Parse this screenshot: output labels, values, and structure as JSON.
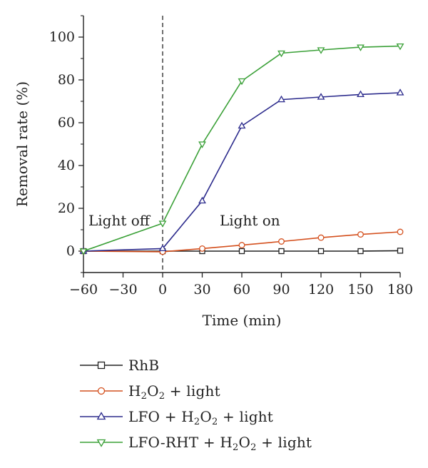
{
  "chart_data": {
    "type": "line",
    "xlabel": "Time (min)",
    "ylabel": "Removal rate (%)",
    "xlim": [
      -60,
      180
    ],
    "ylim": [
      -10,
      110
    ],
    "x_ticks": [
      -60,
      -30,
      0,
      30,
      60,
      90,
      120,
      150,
      180
    ],
    "y_ticks": [
      0,
      20,
      40,
      60,
      80,
      100
    ],
    "x_tick_labels": [
      "−60",
      "−30",
      "0",
      "30",
      "60",
      "90",
      "120",
      "150",
      "180"
    ],
    "y_tick_labels": [
      "0",
      "20",
      "40",
      "60",
      "80",
      "100"
    ],
    "grid": false,
    "legend_position": "bottom",
    "annotations": {
      "light_off": "Light off",
      "light_on": "Light on",
      "divider_x": 0
    },
    "x": [
      -60,
      0,
      30,
      60,
      90,
      120,
      150,
      180
    ],
    "series": [
      {
        "name": "RhB",
        "color": "#222222",
        "marker": "square",
        "values": [
          0,
          0,
          0,
          0,
          0,
          0,
          0,
          0.2
        ]
      },
      {
        "name": "H₂O₂ + light",
        "color": "#d4501e",
        "marker": "circle",
        "values": [
          0,
          -0.3,
          1.2,
          2.8,
          4.5,
          6.3,
          7.8,
          9.0
        ]
      },
      {
        "name": "LFO + H₂O₂ + light",
        "color": "#2b2a8c",
        "marker": "triangle-up",
        "values": [
          0,
          1.2,
          23.5,
          58.5,
          70.8,
          72.0,
          73.2,
          74.0
        ]
      },
      {
        "name": "LFO-RHT + H₂O₂ + light",
        "color": "#3aa037",
        "marker": "triangle-down",
        "values": [
          0,
          13.0,
          50.0,
          79.5,
          92.5,
          94.0,
          95.3,
          95.8
        ]
      }
    ]
  }
}
